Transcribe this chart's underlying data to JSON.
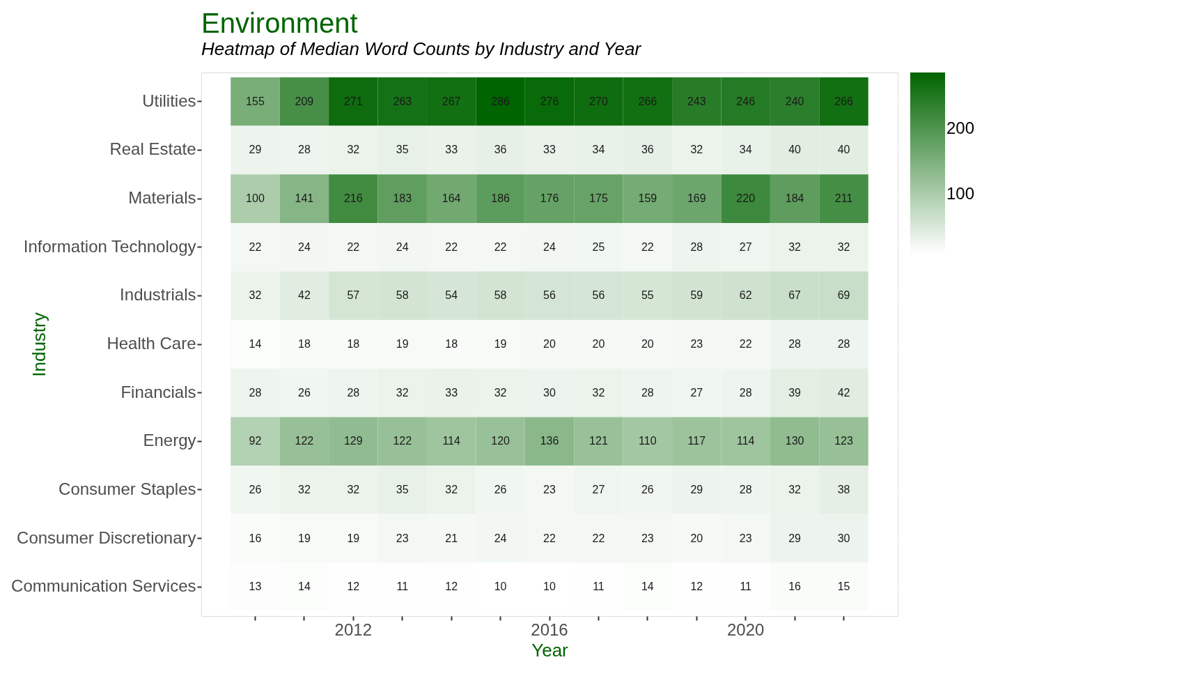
{
  "chart_data": {
    "type": "heatmap",
    "title": "Environment",
    "subtitle": "Heatmap of Median Word Counts by Industry and Year",
    "xlabel": "Year",
    "ylabel": "Industry",
    "categories": [
      null,
      null,
      "2012",
      null,
      null,
      null,
      "2016",
      null,
      null,
      null,
      "2020",
      null,
      null
    ],
    "y_categories": [
      "Utilities",
      "Real Estate",
      "Materials",
      "Information Technology",
      "Industrials",
      "Health Care",
      "Financials",
      "Energy",
      "Consumer Staples",
      "Consumer Discretionary",
      "Communication Services"
    ],
    "cells": [
      [
        155,
        209,
        271,
        263,
        267,
        286,
        276,
        270,
        266,
        243,
        246,
        240,
        266
      ],
      [
        29,
        28,
        32,
        35,
        33,
        36,
        33,
        34,
        36,
        32,
        34,
        40,
        40
      ],
      [
        100,
        141,
        216,
        183,
        164,
        186,
        176,
        175,
        159,
        169,
        220,
        184,
        211
      ],
      [
        22,
        24,
        22,
        24,
        22,
        22,
        24,
        25,
        22,
        28,
        27,
        32,
        32
      ],
      [
        32,
        42,
        57,
        58,
        54,
        58,
        56,
        56,
        55,
        59,
        62,
        67,
        69
      ],
      [
        14,
        18,
        18,
        19,
        18,
        19,
        20,
        20,
        20,
        23,
        22,
        28,
        28
      ],
      [
        28,
        26,
        28,
        32,
        33,
        32,
        30,
        32,
        28,
        27,
        28,
        39,
        42
      ],
      [
        92,
        122,
        129,
        122,
        114,
        120,
        136,
        121,
        110,
        117,
        114,
        130,
        123
      ],
      [
        26,
        32,
        32,
        35,
        32,
        26,
        23,
        27,
        26,
        29,
        28,
        32,
        38
      ],
      [
        16,
        19,
        19,
        23,
        21,
        24,
        22,
        22,
        23,
        20,
        23,
        29,
        30
      ],
      [
        13,
        14,
        12,
        11,
        12,
        10,
        10,
        11,
        14,
        12,
        11,
        16,
        15
      ]
    ],
    "clim": [
      10,
      286
    ],
    "cticks": [
      100,
      200
    ],
    "colors": [
      "#ffffff",
      "#006400"
    ],
    "data_labels": true,
    "grid": true
  }
}
